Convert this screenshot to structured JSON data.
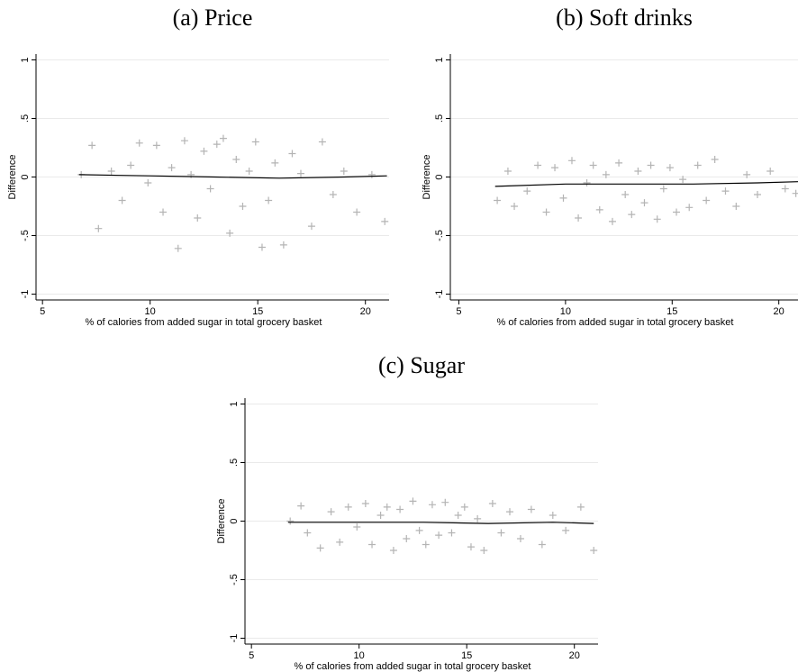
{
  "chart_data": [
    {
      "type": "scatter",
      "title": "(a) Price",
      "xlabel": "% of calories from added sugar in total grocery basket",
      "ylabel": "Difference",
      "x": [
        6.8,
        7.3,
        7.6,
        8.2,
        8.7,
        9.1,
        9.5,
        9.9,
        10.3,
        10.6,
        11.0,
        11.3,
        11.6,
        11.9,
        12.2,
        12.5,
        12.8,
        13.1,
        13.4,
        13.7,
        14.0,
        14.3,
        14.6,
        14.9,
        15.2,
        15.5,
        15.8,
        16.2,
        16.6,
        17.0,
        17.5,
        18.0,
        18.5,
        19.0,
        19.6,
        20.3,
        20.9
      ],
      "values": [
        0.02,
        0.27,
        -0.44,
        0.05,
        -0.2,
        0.1,
        0.29,
        -0.05,
        0.27,
        -0.3,
        0.08,
        -0.61,
        0.31,
        0.02,
        -0.35,
        0.22,
        -0.1,
        0.28,
        0.33,
        -0.48,
        0.15,
        -0.25,
        0.05,
        0.3,
        -0.6,
        -0.2,
        0.12,
        -0.58,
        0.2,
        0.03,
        -0.42,
        0.3,
        -0.15,
        0.05,
        -0.3,
        0.02,
        -0.38
      ],
      "color": "#b4b4b4",
      "trend_x": [
        6.7,
        10,
        13,
        16,
        19,
        21
      ],
      "trend_values": [
        0.02,
        0.01,
        0.0,
        -0.01,
        0.0,
        0.01
      ],
      "trend_color": "#000000",
      "xlim": [
        4.7,
        21.1
      ],
      "xticks": [
        5,
        10,
        15,
        20
      ],
      "ylim": [
        -1.05,
        1.05
      ],
      "yticks": [
        {
          "value": -1,
          "label": "-1"
        },
        {
          "value": -0.5,
          "label": "-.5"
        },
        0,
        {
          "value": 0.5,
          "label": ".5"
        },
        1
      ],
      "grid": true
    },
    {
      "type": "scatter",
      "title": "(b) Soft drinks",
      "xlabel": "% of calories from added sugar in total grocery basket",
      "ylabel": "Difference",
      "x": [
        6.8,
        7.3,
        7.6,
        8.2,
        8.7,
        9.1,
        9.5,
        9.9,
        10.3,
        10.6,
        11.0,
        11.3,
        11.6,
        11.9,
        12.2,
        12.5,
        12.8,
        13.1,
        13.4,
        13.7,
        14.0,
        14.3,
        14.6,
        14.9,
        15.2,
        15.5,
        15.8,
        16.2,
        16.6,
        17.0,
        17.5,
        18.0,
        18.5,
        19.0,
        19.6,
        20.3,
        20.8
      ],
      "values": [
        -0.2,
        0.05,
        -0.25,
        -0.12,
        0.1,
        -0.3,
        0.08,
        -0.18,
        0.14,
        -0.35,
        -0.05,
        0.1,
        -0.28,
        0.02,
        -0.38,
        0.12,
        -0.15,
        -0.32,
        0.05,
        -0.22,
        0.1,
        -0.36,
        -0.1,
        0.08,
        -0.3,
        -0.02,
        -0.26,
        0.1,
        -0.2,
        0.15,
        -0.12,
        -0.25,
        0.02,
        -0.15,
        0.05,
        -0.1,
        -0.14
      ],
      "color": "#b4b4b4",
      "trend_x": [
        6.7,
        10,
        13,
        16,
        19,
        20.9
      ],
      "trend_values": [
        -0.08,
        -0.06,
        -0.06,
        -0.06,
        -0.05,
        -0.04
      ],
      "trend_color": "#000000",
      "xlim": [
        4.6,
        20.9
      ],
      "xticks": [
        5,
        10,
        15,
        20
      ],
      "ylim": [
        -1.05,
        1.05
      ],
      "yticks": [
        {
          "value": -1,
          "label": "-1"
        },
        {
          "value": -0.5,
          "label": "-.5"
        },
        0,
        {
          "value": 0.5,
          "label": ".5"
        },
        1
      ],
      "grid": true
    },
    {
      "type": "scatter",
      "title": "(c) Sugar",
      "xlabel": "% of calories from added sugar in total grocery basket",
      "ylabel": "Difference",
      "x": [
        6.8,
        7.3,
        7.6,
        8.2,
        8.7,
        9.1,
        9.5,
        9.9,
        10.3,
        10.6,
        11.0,
        11.3,
        11.6,
        11.9,
        12.2,
        12.5,
        12.8,
        13.1,
        13.4,
        13.7,
        14.0,
        14.3,
        14.6,
        14.9,
        15.2,
        15.5,
        15.8,
        16.2,
        16.6,
        17.0,
        17.5,
        18.0,
        18.5,
        19.0,
        19.6,
        20.3,
        20.9
      ],
      "values": [
        0.0,
        0.13,
        -0.1,
        -0.23,
        0.08,
        -0.18,
        0.12,
        -0.05,
        0.15,
        -0.2,
        0.05,
        0.12,
        -0.25,
        0.1,
        -0.15,
        0.17,
        -0.08,
        -0.2,
        0.14,
        -0.12,
        0.16,
        -0.1,
        0.05,
        0.12,
        -0.22,
        0.02,
        -0.25,
        0.15,
        -0.1,
        0.08,
        -0.15,
        0.1,
        -0.2,
        0.05,
        -0.08,
        0.12,
        -0.25
      ],
      "color": "#b4b4b4",
      "trend_x": [
        6.7,
        10,
        13,
        16,
        19,
        20.9
      ],
      "trend_values": [
        -0.01,
        -0.01,
        -0.01,
        -0.02,
        -0.01,
        -0.02
      ],
      "trend_color": "#000000",
      "xlim": [
        4.7,
        21.1
      ],
      "xticks": [
        5,
        10,
        15,
        20
      ],
      "ylim": [
        -1.05,
        1.05
      ],
      "yticks": [
        {
          "value": -1,
          "label": "-1"
        },
        {
          "value": -0.5,
          "label": "-.5"
        },
        0,
        {
          "value": 0.5,
          "label": ".5"
        },
        1
      ],
      "grid": true
    }
  ]
}
